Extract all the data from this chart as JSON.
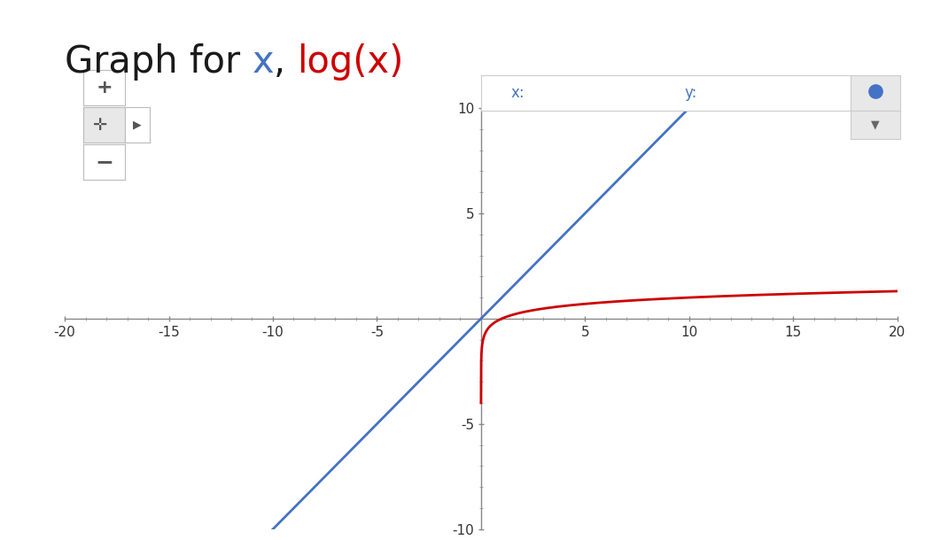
{
  "title_parts": [
    {
      "text": "Graph for ",
      "color": "#1a1a1a"
    },
    {
      "text": "x",
      "color": "#4472c4"
    },
    {
      "text": ", ",
      "color": "#1a1a1a"
    },
    {
      "text": "log(x)",
      "color": "#cc0000"
    }
  ],
  "title_fontsize": 30,
  "xlim": [
    -20,
    20
  ],
  "ylim": [
    -10,
    10
  ],
  "xticks": [
    -20,
    -15,
    -10,
    -5,
    5,
    10,
    15,
    20
  ],
  "yticks": [
    -10,
    -5,
    5,
    10
  ],
  "minor_xtick_step": 1,
  "minor_ytick_step": 1,
  "line_color": "#4472c4",
  "log_color": "#cc0000",
  "plot_bg": "#ffffff",
  "outer_bg": "#ffffff",
  "axis_line_color": "#888888",
  "tick_color": "#888888",
  "tick_label_color": "#333333",
  "tick_fontsize": 11,
  "legend_bg": "#ffffff",
  "legend_border": "#cccccc",
  "legend_x_color": "#4472c4",
  "legend_y_color": "#4472c4",
  "dot_color": "#4472c4",
  "dot_bg": "#e8e8e8",
  "nav_bg": "#f5f5f5",
  "nav_border": "#cccccc"
}
